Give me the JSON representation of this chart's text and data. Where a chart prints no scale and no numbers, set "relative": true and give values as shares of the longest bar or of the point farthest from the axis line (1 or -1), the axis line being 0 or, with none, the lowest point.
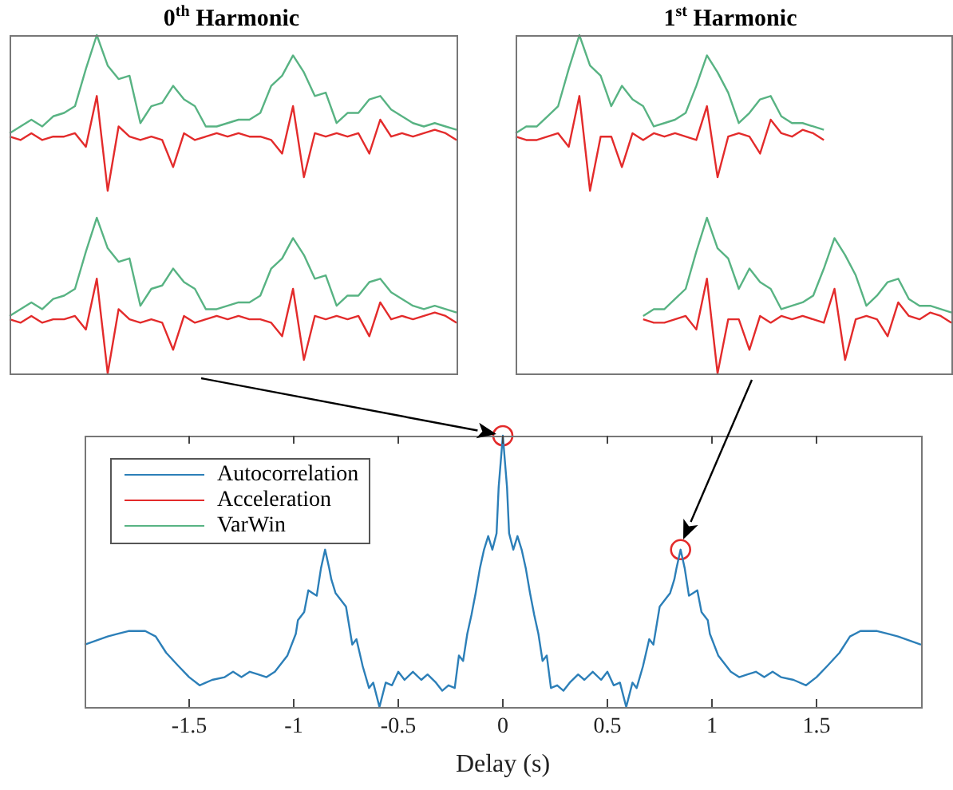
{
  "chart_data": [
    {
      "type": "line",
      "title": "0$^{th}$ Harmonic",
      "relative": true,
      "tick_labels": false,
      "categories": [
        null,
        null,
        null,
        null,
        null,
        null,
        null,
        null,
        null,
        null,
        null,
        null,
        null,
        null,
        null,
        null,
        null,
        null,
        null,
        null,
        null,
        null,
        null,
        null,
        null,
        null,
        null,
        null,
        null,
        null,
        null,
        null,
        null,
        null,
        null,
        null,
        null,
        null,
        null,
        null,
        null,
        null
      ],
      "series": [
        {
          "color": "#58b383",
          "values": [
            0.71,
            0.73,
            0.75,
            0.73,
            0.76,
            0.77,
            0.79,
            0.9,
            1,
            0.91,
            0.87,
            0.88,
            0.74,
            0.79,
            0.8,
            0.85,
            0.81,
            0.79,
            0.73,
            0.73,
            0.74,
            0.75,
            0.75,
            0.77,
            0.85,
            0.88,
            0.94,
            0.89,
            0.82,
            0.83,
            0.74,
            0.77,
            0.77,
            0.81,
            0.82,
            0.78,
            0.76,
            0.74,
            0.73,
            0.74,
            0.73,
            0.72
          ]
        },
        {
          "color": "#e32b2b",
          "values": [
            0.7,
            0.69,
            0.71,
            0.69,
            0.7,
            0.7,
            0.71,
            0.67,
            0.82,
            0.54,
            0.73,
            0.7,
            0.69,
            0.7,
            0.69,
            0.61,
            0.71,
            0.69,
            0.7,
            0.71,
            0.7,
            0.71,
            0.7,
            0.7,
            0.69,
            0.65,
            0.79,
            0.58,
            0.71,
            0.7,
            0.71,
            0.7,
            0.71,
            0.65,
            0.75,
            0.7,
            0.71,
            0.7,
            0.71,
            0.72,
            0.71,
            0.69
          ]
        },
        {
          "color": "#58b383",
          "values": [
            0.17,
            0.19,
            0.21,
            0.19,
            0.22,
            0.23,
            0.25,
            0.36,
            0.46,
            0.37,
            0.33,
            0.34,
            0.2,
            0.25,
            0.26,
            0.31,
            0.27,
            0.25,
            0.19,
            0.19,
            0.2,
            0.21,
            0.21,
            0.23,
            0.31,
            0.34,
            0.4,
            0.35,
            0.28,
            0.29,
            0.2,
            0.23,
            0.23,
            0.27,
            0.28,
            0.24,
            0.22,
            0.2,
            0.19,
            0.2,
            0.19,
            0.18
          ]
        },
        {
          "color": "#e32b2b",
          "values": [
            0.16,
            0.15,
            0.17,
            0.15,
            0.16,
            0.16,
            0.17,
            0.13,
            0.28,
            0,
            0.19,
            0.16,
            0.15,
            0.16,
            0.15,
            0.07,
            0.17,
            0.15,
            0.16,
            0.17,
            0.16,
            0.17,
            0.16,
            0.16,
            0.15,
            0.11,
            0.25,
            0.04,
            0.17,
            0.16,
            0.17,
            0.16,
            0.17,
            0.11,
            0.21,
            0.16,
            0.17,
            0.16,
            0.17,
            0.18,
            0.17,
            0.15
          ]
        }
      ]
    },
    {
      "type": "line",
      "title": "1$^{st}$ Harmonic",
      "relative": true,
      "tick_labels": false,
      "categories": [
        null,
        null,
        null,
        null,
        null,
        null,
        null,
        null,
        null,
        null,
        null,
        null,
        null,
        null,
        null,
        null,
        null,
        null,
        null,
        null,
        null,
        null,
        null,
        null,
        null,
        null,
        null,
        null,
        null,
        null,
        null,
        null,
        null,
        null,
        null,
        null,
        null,
        null,
        null,
        null,
        null,
        null
      ],
      "series": [
        {
          "color": "#58b383",
          "values": [
            0.71,
            0.73,
            0.73,
            0.76,
            0.79,
            0.9,
            1,
            0.91,
            0.88,
            0.79,
            0.85,
            0.81,
            0.79,
            0.73,
            0.74,
            0.75,
            0.77,
            0.85,
            0.94,
            0.89,
            0.83,
            0.74,
            0.77,
            0.81,
            0.82,
            0.76,
            0.74,
            0.74,
            0.73,
            0.72,
            null,
            null,
            null,
            null,
            null,
            null,
            null,
            null,
            null,
            null,
            null,
            null
          ]
        },
        {
          "color": "#e32b2b",
          "values": [
            0.7,
            0.69,
            0.69,
            0.7,
            0.71,
            0.67,
            0.82,
            0.54,
            0.7,
            0.7,
            0.61,
            0.71,
            0.69,
            0.71,
            0.7,
            0.71,
            0.7,
            0.69,
            0.79,
            0.58,
            0.7,
            0.71,
            0.7,
            0.65,
            0.75,
            0.71,
            0.7,
            0.72,
            0.71,
            0.69,
            null,
            null,
            null,
            null,
            null,
            null,
            null,
            null,
            null,
            null,
            null,
            null
          ]
        },
        {
          "color": "#58b383",
          "values": [
            null,
            null,
            null,
            null,
            null,
            null,
            null,
            null,
            null,
            null,
            null,
            null,
            0.17,
            0.19,
            0.19,
            0.22,
            0.25,
            0.36,
            0.46,
            0.37,
            0.34,
            0.25,
            0.31,
            0.27,
            0.25,
            0.19,
            0.2,
            0.21,
            0.23,
            0.31,
            0.4,
            0.35,
            0.29,
            0.2,
            0.23,
            0.27,
            0.28,
            0.22,
            0.2,
            0.2,
            0.19,
            0.18
          ]
        },
        {
          "color": "#e32b2b",
          "values": [
            null,
            null,
            null,
            null,
            null,
            null,
            null,
            null,
            null,
            null,
            null,
            null,
            0.16,
            0.15,
            0.15,
            0.16,
            0.17,
            0.13,
            0.28,
            0,
            0.16,
            0.16,
            0.07,
            0.17,
            0.15,
            0.17,
            0.16,
            0.17,
            0.16,
            0.15,
            0.25,
            0.04,
            0.16,
            0.17,
            0.16,
            0.11,
            0.21,
            0.17,
            0.16,
            0.18,
            0.17,
            0.15
          ]
        }
      ]
    },
    {
      "type": "line",
      "xlabel": "Delay (s)",
      "relative": true,
      "grid": false,
      "legend": "top left",
      "tick_labels": "x",
      "xlim": [
        -2,
        2
      ],
      "xticks": [
        -1.5,
        -1,
        -0.5,
        0,
        0.5,
        1,
        1.5
      ],
      "series": [
        {
          "name": "Autocorrelation",
          "color": "#2c7fb8",
          "x": [
            -2,
            -1.89,
            -1.84,
            -1.79,
            -1.71,
            -1.66,
            -1.61,
            -1.55,
            -1.5,
            -1.45,
            -1.39,
            -1.33,
            -1.29,
            -1.25,
            -1.21,
            -1.17,
            -1.13,
            -1.09,
            -1.05,
            -1.03,
            -0.99,
            -0.98,
            -0.95,
            -0.93,
            -0.91,
            -0.89,
            -0.87,
            -0.85,
            -0.83,
            -0.82,
            -0.8,
            -0.78,
            -0.75,
            -0.72,
            -0.7,
            -0.67,
            -0.64,
            -0.62,
            -0.59,
            -0.56,
            -0.53,
            -0.5,
            -0.47,
            -0.43,
            -0.39,
            -0.36,
            -0.32,
            -0.29,
            -0.26,
            -0.23,
            -0.21,
            -0.19,
            -0.17,
            -0.15,
            -0.13,
            -0.11,
            -0.09,
            -0.07,
            -0.05,
            -0.03,
            -0.02,
            0,
            0.02,
            0.03,
            0.05,
            0.07,
            0.09,
            0.11,
            0.13,
            0.15,
            0.17,
            0.19,
            0.21,
            0.23,
            0.26,
            0.29,
            0.32,
            0.36,
            0.39,
            0.43,
            0.47,
            0.5,
            0.53,
            0.56,
            0.59,
            0.62,
            0.64,
            0.67,
            0.7,
            0.72,
            0.75,
            0.78,
            0.8,
            0.82,
            0.83,
            0.85,
            0.87,
            0.89,
            0.91,
            0.93,
            0.95,
            0.98,
            0.99,
            1.03,
            1.05,
            1.09,
            1.13,
            1.17,
            1.21,
            1.25,
            1.29,
            1.33,
            1.39,
            1.45,
            1.5,
            1.55,
            1.61,
            1.66,
            1.71,
            1.79,
            1.84,
            1.89,
            2
          ],
          "values": [
            0.23,
            0.26,
            0.27,
            0.28,
            0.28,
            0.26,
            0.2,
            0.15,
            0.11,
            0.08,
            0.1,
            0.11,
            0.13,
            0.11,
            0.13,
            0.12,
            0.11,
            0.13,
            0.17,
            0.19,
            0.27,
            0.32,
            0.35,
            0.43,
            0.42,
            0.41,
            0.51,
            0.58,
            0.51,
            0.47,
            0.42,
            0.4,
            0.37,
            0.23,
            0.25,
            0.15,
            0.07,
            0.09,
            0,
            0.09,
            0.08,
            0.13,
            0.1,
            0.13,
            0.1,
            0.12,
            0.09,
            0.06,
            0.08,
            0.07,
            0.19,
            0.17,
            0.27,
            0.34,
            0.42,
            0.51,
            0.58,
            0.63,
            0.58,
            0.64,
            0.81,
            1,
            0.81,
            0.64,
            0.58,
            0.63,
            0.58,
            0.51,
            0.42,
            0.34,
            0.27,
            0.17,
            0.19,
            0.07,
            0.08,
            0.06,
            0.09,
            0.12,
            0.1,
            0.13,
            0.1,
            0.13,
            0.08,
            0.09,
            0,
            0.09,
            0.07,
            0.15,
            0.25,
            0.23,
            0.37,
            0.4,
            0.42,
            0.47,
            0.51,
            0.58,
            0.51,
            0.41,
            0.42,
            0.43,
            0.35,
            0.32,
            0.27,
            0.19,
            0.17,
            0.13,
            0.11,
            0.12,
            0.13,
            0.11,
            0.13,
            0.11,
            0.1,
            0.08,
            0.11,
            0.15,
            0.2,
            0.26,
            0.28,
            0.28,
            0.27,
            0.26,
            0.23
          ]
        },
        {
          "name": "Acceleration",
          "color": "#e32b2b"
        },
        {
          "name": "VarWin",
          "color": "#58b383"
        },
        {
          "type": "scatter",
          "marker": "circle",
          "color": "#e32b2b",
          "x": [
            0,
            0.85
          ],
          "values": [
            1,
            0.58
          ]
        }
      ]
    }
  ]
}
